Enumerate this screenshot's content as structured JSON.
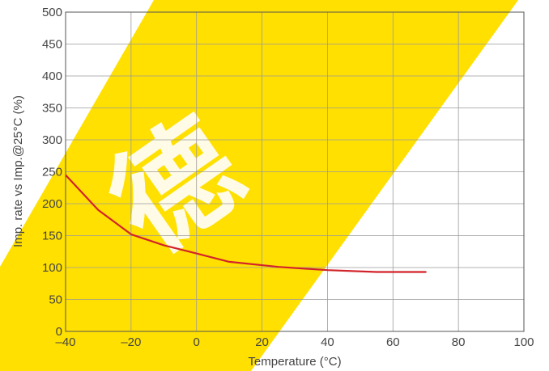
{
  "chart_data": {
    "type": "line",
    "title": "",
    "xlabel": "Temperature (°C)",
    "ylabel": "Imp. rate vs Imp.@25°C (%)",
    "xlim": [
      -40,
      100
    ],
    "ylim": [
      0,
      500
    ],
    "x_ticks": [
      -40,
      -20,
      0,
      20,
      40,
      60,
      80,
      100
    ],
    "y_ticks": [
      0,
      50,
      100,
      150,
      200,
      250,
      300,
      350,
      400,
      450,
      500
    ],
    "grid": true,
    "legend": "none",
    "series": [
      {
        "color": "#d2232a",
        "points": [
          {
            "x": -40,
            "y": 245
          },
          {
            "x": -30,
            "y": 190
          },
          {
            "x": -20,
            "y": 152
          },
          {
            "x": -10,
            "y": 135
          },
          {
            "x": 0,
            "y": 122
          },
          {
            "x": 10,
            "y": 109
          },
          {
            "x": 25,
            "y": 101
          },
          {
            "x": 40,
            "y": 96
          },
          {
            "x": 55,
            "y": 93
          },
          {
            "x": 70,
            "y": 93
          }
        ]
      }
    ],
    "watermark_text": "德",
    "watermark_color": "#ffe000"
  }
}
